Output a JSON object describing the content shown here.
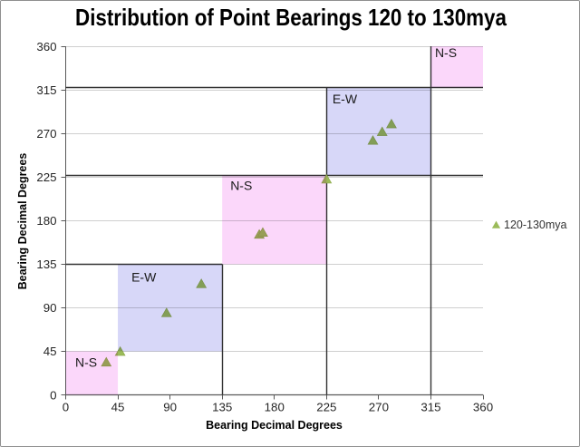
{
  "chart_data": {
    "type": "scatter",
    "title": "Distribution of Point Bearings 120 to 130mya",
    "xlabel": "Bearing Decimal Degrees",
    "ylabel": "Bearing Decimal Degrees",
    "xlim": [
      0,
      360
    ],
    "ylim": [
      0,
      360
    ],
    "xticks": [
      0,
      45,
      90,
      135,
      180,
      225,
      270,
      315,
      360
    ],
    "yticks": [
      0,
      45,
      90,
      135,
      180,
      225,
      270,
      315,
      360
    ],
    "grid": "horizontal-only",
    "legend_position": "right",
    "series": [
      {
        "name": "120-130mya",
        "marker": "triangle",
        "color": "#9bbb59",
        "points": [
          [
            35,
            34
          ],
          [
            47,
            45
          ],
          [
            87,
            85
          ],
          [
            117,
            115
          ],
          [
            167,
            166
          ],
          [
            170,
            168
          ],
          [
            225,
            223
          ],
          [
            265,
            263
          ],
          [
            273,
            272
          ],
          [
            281,
            280
          ]
        ]
      }
    ],
    "regions": [
      {
        "label": "N-S",
        "x": [
          0,
          45
        ],
        "y": [
          0,
          45
        ],
        "color": "#fbd7fa"
      },
      {
        "label": "E-W",
        "x": [
          45,
          135
        ],
        "y": [
          45,
          135
        ],
        "color": "#d7d7f8"
      },
      {
        "label": "N-S",
        "x": [
          135,
          225
        ],
        "y": [
          135,
          225
        ],
        "color": "#fbd7fa"
      },
      {
        "label": "E-W",
        "x": [
          225,
          315
        ],
        "y": [
          225,
          315
        ],
        "color": "#d7d7f8"
      },
      {
        "label": "N-S",
        "x": [
          315,
          360
        ],
        "y": [
          315,
          360
        ],
        "color": "#fbd7fa"
      }
    ],
    "boundary_lines": {
      "color": "#333333",
      "horizontal": [
        {
          "y": 135,
          "x": [
            0,
            135
          ]
        },
        {
          "y": 225,
          "x": [
            0,
            360
          ]
        },
        {
          "y": 315,
          "x": [
            0,
            360
          ]
        }
      ],
      "vertical": [
        {
          "x": 135,
          "y": [
            0,
            135
          ]
        },
        {
          "x": 225,
          "y": [
            0,
            315
          ]
        },
        {
          "x": 315,
          "y": [
            0,
            360
          ]
        }
      ]
    },
    "style": {
      "gridline_color": "#cfcfcf",
      "axis_color": "#595959",
      "tick_label_color": "#262626",
      "region_label_color": "#1a1a1a",
      "frame_border_color": "#8f8f8f",
      "background": "#ffffff"
    }
  }
}
